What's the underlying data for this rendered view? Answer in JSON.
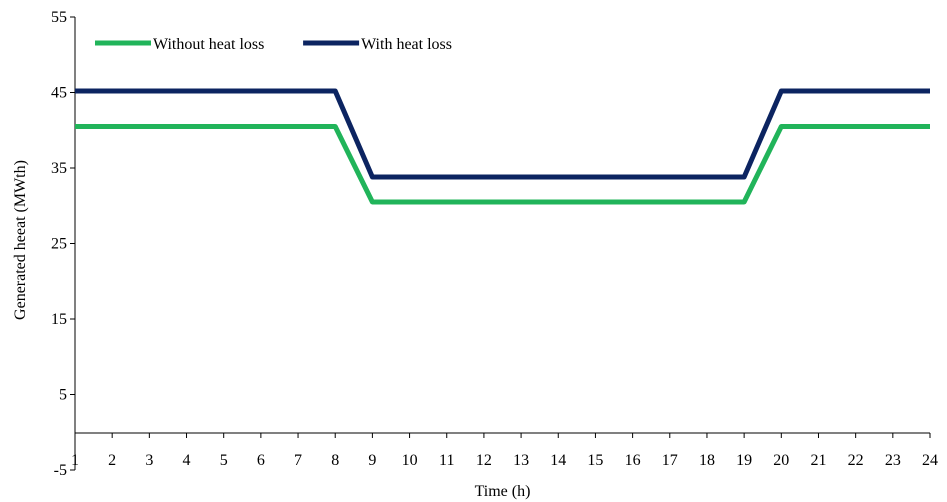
{
  "chart_data": {
    "type": "line",
    "title": "",
    "xlabel": "Time (h)",
    "ylabel": "Generated heeat (MWth)",
    "x": [
      1,
      2,
      3,
      4,
      5,
      6,
      7,
      8,
      9,
      10,
      11,
      12,
      13,
      14,
      15,
      16,
      17,
      18,
      19,
      20,
      21,
      22,
      23,
      24
    ],
    "x_tick_labels": [
      "1",
      "2",
      "3",
      "4",
      "5",
      "6",
      "7",
      "8",
      "9",
      "10",
      "11",
      "12",
      "13",
      "14",
      "15",
      "16",
      "17",
      "18",
      "19",
      "20",
      "21",
      "22",
      "23",
      "24"
    ],
    "xlim": [
      1,
      24
    ],
    "ylim": [
      -5,
      55
    ],
    "y_ticks": [
      -5,
      5,
      15,
      25,
      35,
      45,
      55
    ],
    "y_tick_labels": [
      "-5",
      "5",
      "15",
      "25",
      "35",
      "45",
      "55"
    ],
    "grid": false,
    "legend_position": "top-left",
    "series": [
      {
        "name": "Without heat loss",
        "color": "#21b45a",
        "values": [
          40.5,
          40.5,
          40.5,
          40.5,
          40.5,
          40.5,
          40.5,
          40.5,
          30.5,
          30.5,
          30.5,
          30.5,
          30.5,
          30.5,
          30.5,
          30.5,
          30.5,
          30.5,
          30.5,
          40.5,
          40.5,
          40.5,
          40.5,
          40.5
        ]
      },
      {
        "name": "With heat loss",
        "color": "#0c2461",
        "values": [
          45.2,
          45.2,
          45.2,
          45.2,
          45.2,
          45.2,
          45.2,
          45.2,
          33.8,
          33.8,
          33.8,
          33.8,
          33.8,
          33.8,
          33.8,
          33.8,
          33.8,
          33.8,
          33.8,
          45.2,
          45.2,
          45.2,
          45.2,
          45.2
        ]
      }
    ]
  }
}
